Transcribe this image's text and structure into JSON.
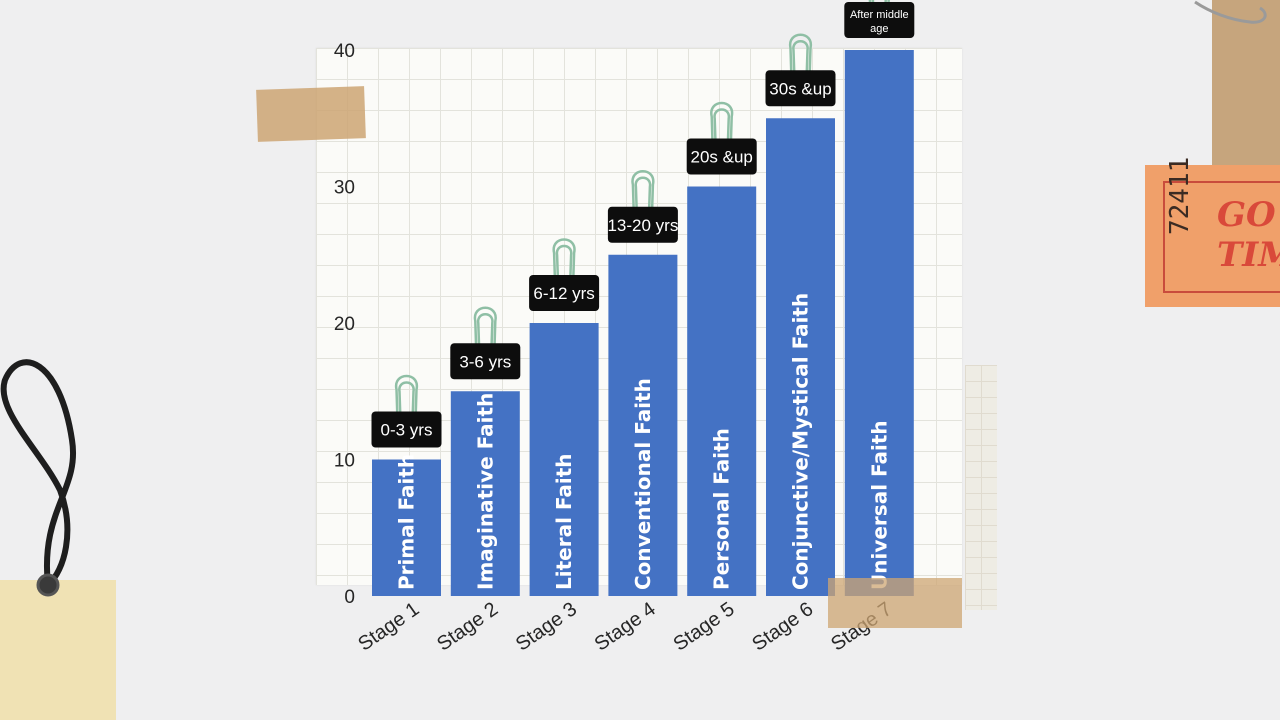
{
  "chart_data": {
    "type": "bar",
    "categories": [
      "Stage 1",
      "Stage 2",
      "Stage 3",
      "Stage 4",
      "Stage 5",
      "Stage 6",
      "Stage 7"
    ],
    "values": [
      10,
      15,
      20,
      25,
      30,
      35,
      40
    ],
    "bar_labels": [
      "Primal Faith",
      "Imaginative Faith",
      "Literal Faith",
      "Conventional Faith",
      "Personal Faith",
      "Conjunctive/Mystical Faith",
      "Universal Faith"
    ],
    "age_labels": [
      "0-3 yrs",
      "3-6 yrs",
      "6-12 yrs",
      "13-20 yrs",
      "20s &up",
      "30s &up",
      "After middle age"
    ],
    "yticks": [
      0,
      10,
      20,
      30,
      40
    ],
    "ylim": [
      0,
      40
    ],
    "grid": true,
    "bar_color": "#4472c4"
  },
  "decor": {
    "ticket_number": "72411",
    "ticket_text": "GO\nTIM"
  },
  "colors": {
    "background": "#efeff0",
    "tape": "#cda573",
    "ticket": "#f0a06a",
    "clip": "#8fbfa5"
  }
}
